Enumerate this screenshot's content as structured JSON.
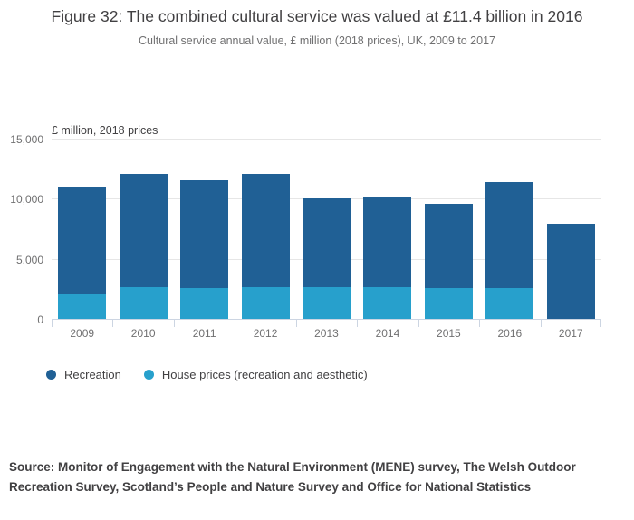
{
  "chart_data": {
    "type": "bar",
    "stacked": true,
    "title": "Figure 32: The combined cultural service was valued at £11.4 billion in 2016",
    "subtitle": "Cultural service annual value, £ million (2018 prices), UK, 2009 to 2017",
    "axis_label": "£ million, 2018 prices",
    "categories": [
      "2009",
      "2010",
      "2011",
      "2012",
      "2013",
      "2014",
      "2015",
      "2016",
      "2017"
    ],
    "series": [
      {
        "name": "Recreation",
        "color": "#206095",
        "values": [
          8950,
          9400,
          9000,
          9400,
          7350,
          7450,
          7000,
          8850,
          7900
        ]
      },
      {
        "name": "House prices (recreation and aesthetic)",
        "color": "#27a0cc",
        "values": [
          2050,
          2650,
          2550,
          2650,
          2650,
          2650,
          2550,
          2550,
          0
        ]
      }
    ],
    "stack_note": "segments stacked bottom-to-top in reverse legend order; totals: 11000, 12050, 11550, 12050, 10000, 10100, 9550, 11400, 7900",
    "ylim": [
      0,
      15000
    ],
    "yticks": [
      0,
      5000,
      10000,
      15000
    ],
    "ytick_labels": [
      "0",
      "5,000",
      "10,000",
      "15,000"
    ],
    "grid": true,
    "legend_position": "bottom-left"
  },
  "source_note": "Source: Monitor of Engagement with the Natural Environment (MENE) survey, The Welsh Outdoor Recreation Survey, Scotland’s People and Nature Survey and Office for National Statistics"
}
